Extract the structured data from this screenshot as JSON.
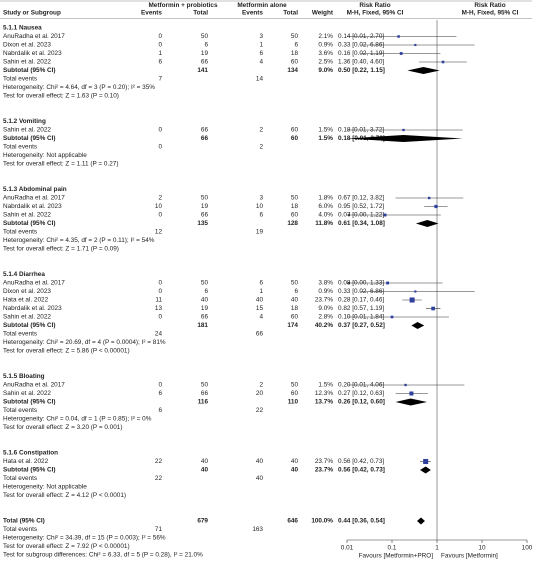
{
  "chart_data": {
    "type": "forest",
    "headers": {
      "study": "Study or Subgroup",
      "group1": "Metformin + probiotics",
      "group2": "Metformin alone",
      "events": "Events",
      "total": "Total",
      "weight": "Weight",
      "rr": "Risk Ratio",
      "method": "M-H, Fixed, 95% CI"
    },
    "subtotal_label": "Subtotal (95% CI)",
    "total_events_label": "Total events",
    "groups": [
      {
        "title": "5.1.1 Nausea",
        "studies": [
          {
            "name": "AnuRadha et al. 2017",
            "events1": 0,
            "total1": 50,
            "events2": 3,
            "total2": 50,
            "weight": 2.1,
            "weight_label": "2.1%",
            "rr": 0.14,
            "lo": 0.01,
            "hi": 2.7,
            "ci_label": "0.14 [0.01, 2.70]"
          },
          {
            "name": "Dixon et al. 2023",
            "events1": 0,
            "total1": 6,
            "events2": 1,
            "total2": 6,
            "weight": 0.9,
            "weight_label": "0.9%",
            "rr": 0.33,
            "lo": 0.02,
            "hi": 6.86,
            "ci_label": "0.33 [0.02, 6.86]"
          },
          {
            "name": "Nabrdalik et al. 2023",
            "events1": 1,
            "total1": 19,
            "events2": 6,
            "total2": 18,
            "weight": 3.6,
            "weight_label": "3.6%",
            "rr": 0.16,
            "lo": 0.02,
            "hi": 1.19,
            "ci_label": "0.16 [0.02, 1.19]"
          },
          {
            "name": "Sahin et al. 2022",
            "events1": 6,
            "total1": 66,
            "events2": 4,
            "total2": 60,
            "weight": 2.5,
            "weight_label": "2.5%",
            "rr": 1.36,
            "lo": 0.4,
            "hi": 4.6,
            "ci_label": "1.36 [0.40, 4.60]"
          }
        ],
        "subtotal": {
          "total1": 141,
          "total2": 134,
          "weight_label": "9.0%",
          "rr": 0.5,
          "lo": 0.22,
          "hi": 1.15,
          "ci_label": "0.50 [0.22, 1.15]"
        },
        "events1": 7,
        "events2": 14,
        "heterogeneity": "Heterogeneity: Chi² = 4.64, df = 3 (P = 0.20); I² = 35%",
        "overall_effect": "Test for overall effect: Z = 1.63 (P = 0.10)"
      },
      {
        "title": "5.1.2 Vomiting",
        "studies": [
          {
            "name": "Sahin et al. 2022",
            "events1": 0,
            "total1": 66,
            "events2": 2,
            "total2": 60,
            "weight": 1.5,
            "weight_label": "1.5%",
            "rr": 0.18,
            "lo": 0.01,
            "hi": 3.72,
            "ci_label": "0.18 [0.01, 3.72]"
          }
        ],
        "subtotal": {
          "total1": 66,
          "total2": 60,
          "weight_label": "1.5%",
          "rr": 0.18,
          "lo": 0.01,
          "hi": 3.72,
          "ci_label": "0.18 [0.01, 3.72]"
        },
        "events1": 0,
        "events2": 2,
        "heterogeneity": "Heterogeneity: Not applicable",
        "overall_effect": "Test for overall effect: Z = 1.11 (P = 0.27)"
      },
      {
        "title": "5.1.3 Abdominal pain",
        "studies": [
          {
            "name": "AnuRadha et al. 2017",
            "events1": 2,
            "total1": 50,
            "events2": 3,
            "total2": 50,
            "weight": 1.8,
            "weight_label": "1.8%",
            "rr": 0.67,
            "lo": 0.12,
            "hi": 3.82,
            "ci_label": "0.67 [0.12, 3.82]"
          },
          {
            "name": "Nabrdalik et al. 2023",
            "events1": 10,
            "total1": 19,
            "events2": 10,
            "total2": 18,
            "weight": 6.0,
            "weight_label": "6.0%",
            "rr": 0.95,
            "lo": 0.52,
            "hi": 1.72,
            "ci_label": "0.95 [0.52, 1.72]"
          },
          {
            "name": "Sahin et al. 2022",
            "events1": 0,
            "total1": 66,
            "events2": 6,
            "total2": 60,
            "weight": 4.0,
            "weight_label": "4.0%",
            "rr": 0.07,
            "lo": 0.0,
            "hi": 1.22,
            "ci_label": "0.07 [0.00, 1.22]"
          }
        ],
        "subtotal": {
          "total1": 135,
          "total2": 128,
          "weight_label": "11.8%",
          "rr": 0.61,
          "lo": 0.34,
          "hi": 1.08,
          "ci_label": "0.61 [0.34, 1.08]"
        },
        "events1": 12,
        "events2": 19,
        "heterogeneity": "Heterogeneity: Chi² = 4.35, df = 2 (P = 0.11); I² = 54%",
        "overall_effect": "Test for overall effect: Z = 1.71 (P = 0.09)"
      },
      {
        "title": "5.1.4 Diarrhea",
        "studies": [
          {
            "name": "AnuRadha et al. 2017",
            "events1": 0,
            "total1": 50,
            "events2": 6,
            "total2": 50,
            "weight": 3.8,
            "weight_label": "3.8%",
            "rr": 0.08,
            "lo": 0.0,
            "hi": 1.33,
            "ci_label": "0.08 [0.00, 1.33]"
          },
          {
            "name": "Dixon et al. 2023",
            "events1": 0,
            "total1": 6,
            "events2": 1,
            "total2": 6,
            "weight": 0.9,
            "weight_label": "0.9%",
            "rr": 0.33,
            "lo": 0.02,
            "hi": 6.86,
            "ci_label": "0.33 [0.02, 6.86]"
          },
          {
            "name": "Hata et al. 2022",
            "events1": 11,
            "total1": 40,
            "events2": 40,
            "total2": 40,
            "weight": 23.7,
            "weight_label": "23.7%",
            "rr": 0.28,
            "lo": 0.17,
            "hi": 0.46,
            "ci_label": "0.28 [0.17, 0.46]"
          },
          {
            "name": "Nabrdalik et al. 2023",
            "events1": 13,
            "total1": 19,
            "events2": 15,
            "total2": 18,
            "weight": 9.0,
            "weight_label": "9.0%",
            "rr": 0.82,
            "lo": 0.57,
            "hi": 1.19,
            "ci_label": "0.82 [0.57, 1.19]"
          },
          {
            "name": "Sahin et al. 2022",
            "events1": 0,
            "total1": 66,
            "events2": 4,
            "total2": 60,
            "weight": 2.8,
            "weight_label": "2.8%",
            "rr": 0.1,
            "lo": 0.01,
            "hi": 1.84,
            "ci_label": "0.10 [0.01, 1.84]"
          }
        ],
        "subtotal": {
          "total1": 181,
          "total2": 174,
          "weight_label": "40.2%",
          "rr": 0.37,
          "lo": 0.27,
          "hi": 0.52,
          "ci_label": "0.37 [0.27, 0.52]"
        },
        "events1": 24,
        "events2": 66,
        "heterogeneity": "Heterogeneity: Chi² = 20.69, df = 4 (P = 0.0004); I² = 81%",
        "overall_effect": "Test for overall effect: Z = 5.86 (P < 0.00001)"
      },
      {
        "title": "5.1.5 Bloating",
        "studies": [
          {
            "name": "AnuRadha et al. 2017",
            "events1": 0,
            "total1": 50,
            "events2": 2,
            "total2": 50,
            "weight": 1.5,
            "weight_label": "1.5%",
            "rr": 0.2,
            "lo": 0.01,
            "hi": 4.06,
            "ci_label": "0.20 [0.01, 4.06]"
          },
          {
            "name": "Sahin et al. 2022",
            "events1": 6,
            "total1": 66,
            "events2": 20,
            "total2": 60,
            "weight": 12.3,
            "weight_label": "12.3%",
            "rr": 0.27,
            "lo": 0.12,
            "hi": 0.63,
            "ci_label": "0.27 [0.12, 0.63]"
          }
        ],
        "subtotal": {
          "total1": 116,
          "total2": 110,
          "weight_label": "13.7%",
          "rr": 0.26,
          "lo": 0.12,
          "hi": 0.6,
          "ci_label": "0.26 [0.12, 0.60]"
        },
        "events1": 6,
        "events2": 22,
        "heterogeneity": "Heterogeneity: Chi² = 0.04, df = 1 (P = 0.85); I² = 0%",
        "overall_effect": "Test for overall effect: Z = 3.20 (P = 0.001)"
      },
      {
        "title": "5.1.6 Constipation",
        "studies": [
          {
            "name": "Hata et al. 2022",
            "events1": 22,
            "total1": 40,
            "events2": 40,
            "total2": 40,
            "weight": 23.7,
            "weight_label": "23.7%",
            "rr": 0.56,
            "lo": 0.42,
            "hi": 0.73,
            "ci_label": "0.56 [0.42, 0.73]"
          }
        ],
        "subtotal": {
          "total1": 40,
          "total2": 40,
          "weight_label": "23.7%",
          "rr": 0.56,
          "lo": 0.42,
          "hi": 0.73,
          "ci_label": "0.56 [0.42, 0.73]"
        },
        "events1": 22,
        "events2": 40,
        "heterogeneity": "Heterogeneity: Not applicable",
        "overall_effect": "Test for overall effect: Z = 4.12 (P < 0.0001)"
      }
    ],
    "overall": {
      "label": "Total (95% CI)",
      "total1": 679,
      "total2": 646,
      "weight_label": "100.0%",
      "rr": 0.44,
      "lo": 0.36,
      "hi": 0.54,
      "ci_label": "0.44 [0.36, 0.54]",
      "events1": 71,
      "events2": 163,
      "heterogeneity": "Heterogeneity: Chi² = 34.39, df = 15 (P = 0.003); I² = 56%",
      "overall_effect": "Test for overall effect: Z = 7.92 (P < 0.00001)",
      "subgroup_differences": "Test for subgroup differences: Chi² = 6.33, df = 5 (P = 0.28), I² = 21.0%"
    },
    "xlim": [
      0.01,
      100
    ],
    "xticks": [
      0.01,
      0.1,
      1,
      10,
      100
    ],
    "log_scale": true,
    "null_line": 1,
    "favours_left": "Favours [Metformin+PRO]",
    "favours_right": "Favours [Metformin]",
    "study_color": "#2f3f9e",
    "diamond_color": "#000000"
  }
}
